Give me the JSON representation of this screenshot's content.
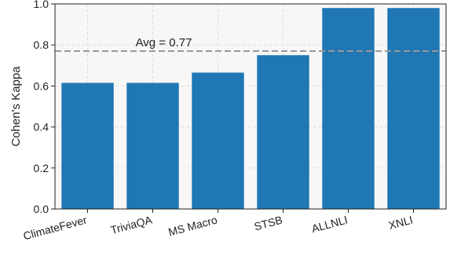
{
  "chart_data": {
    "type": "bar",
    "title": "",
    "xlabel": "",
    "ylabel": "Cohen's Kappa",
    "ylim": [
      0.0,
      1.0
    ],
    "yticks": [
      "0.0",
      "0.2",
      "0.4",
      "0.6",
      "0.8",
      "1.0"
    ],
    "categories": [
      "ClimateFever",
      "TriviaQA",
      "MS Macro",
      "STSB",
      "ALLNLI",
      "XNLI"
    ],
    "values": [
      0.615,
      0.615,
      0.665,
      0.75,
      0.98,
      0.98
    ],
    "reference_line": {
      "value": 0.77,
      "label": "Avg = 0.77",
      "style": "dashed",
      "color": "#999999"
    },
    "bar_color": "#1f77b4",
    "background_color": "#f7f7f7",
    "grid": true,
    "x_tick_rotation": "slanted"
  }
}
